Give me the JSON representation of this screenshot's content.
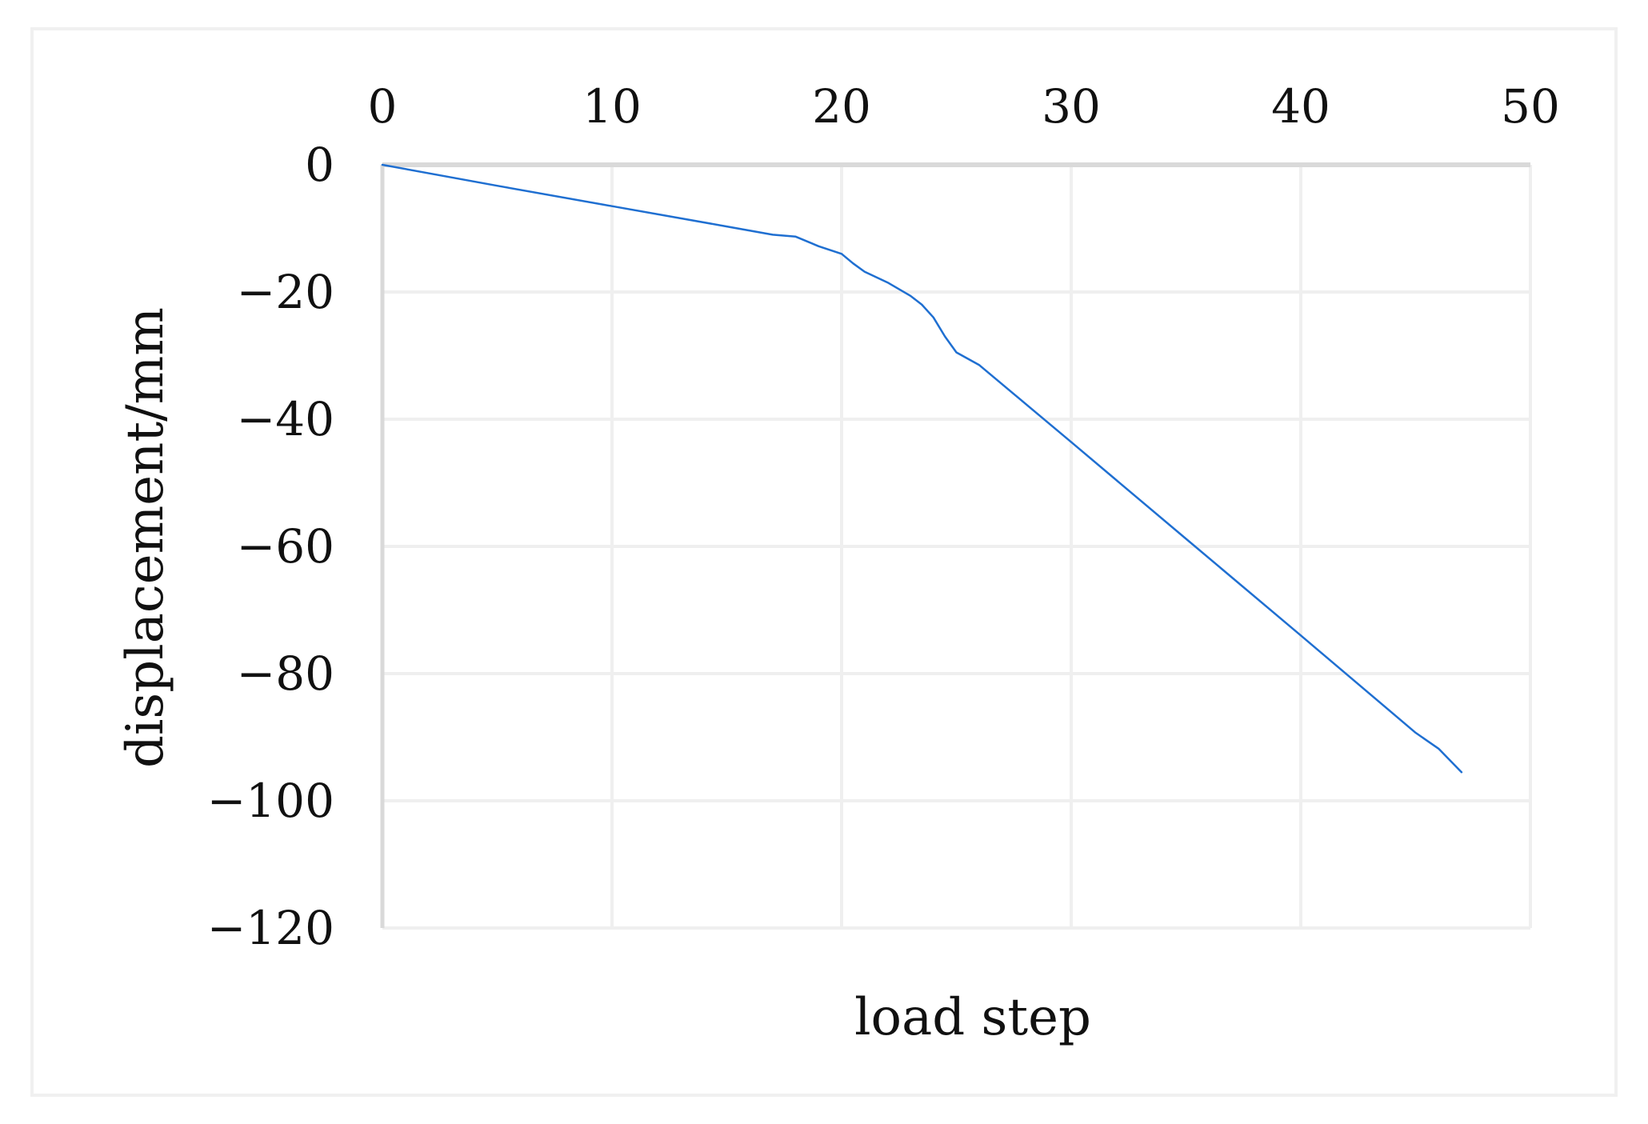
{
  "chart_data": {
    "type": "line",
    "title": "",
    "xlabel": "load step",
    "ylabel": "displacement/mm",
    "xlim": [
      0,
      50
    ],
    "ylim": [
      -120,
      0
    ],
    "x_ticks": [
      0,
      10,
      20,
      30,
      40,
      50
    ],
    "y_ticks": [
      0,
      -20,
      -40,
      -60,
      -80,
      -100,
      -120
    ],
    "x_tick_labels": [
      "0",
      "10",
      "20",
      "30",
      "40",
      "50"
    ],
    "y_tick_labels": [
      "0",
      "−20",
      "−40",
      "−60",
      "−80",
      "−100",
      "−120"
    ],
    "x_axis_position": "top",
    "grid": true,
    "legend": "none",
    "colors": {
      "line": "#1f6fd1",
      "grid": "#efefef",
      "axis": "#d9d9d9",
      "frame": "#f0f0f0"
    },
    "series": [
      {
        "x": [
          0,
          5,
          10,
          15,
          17,
          18,
          19,
          20,
          20.5,
          21,
          22,
          23,
          23.5,
          24,
          24.5,
          25,
          26,
          30,
          35,
          40,
          45,
          46,
          47
        ],
        "y": [
          0,
          -3.3,
          -6.5,
          -9.7,
          -11.0,
          -11.3,
          -12.8,
          -14.0,
          -15.5,
          -16.8,
          -18.5,
          -20.6,
          -22.0,
          -24.0,
          -27.0,
          -29.5,
          -31.5,
          -43.6,
          -58.8,
          -74.0,
          -89.3,
          -91.8,
          -95.5
        ]
      }
    ]
  }
}
